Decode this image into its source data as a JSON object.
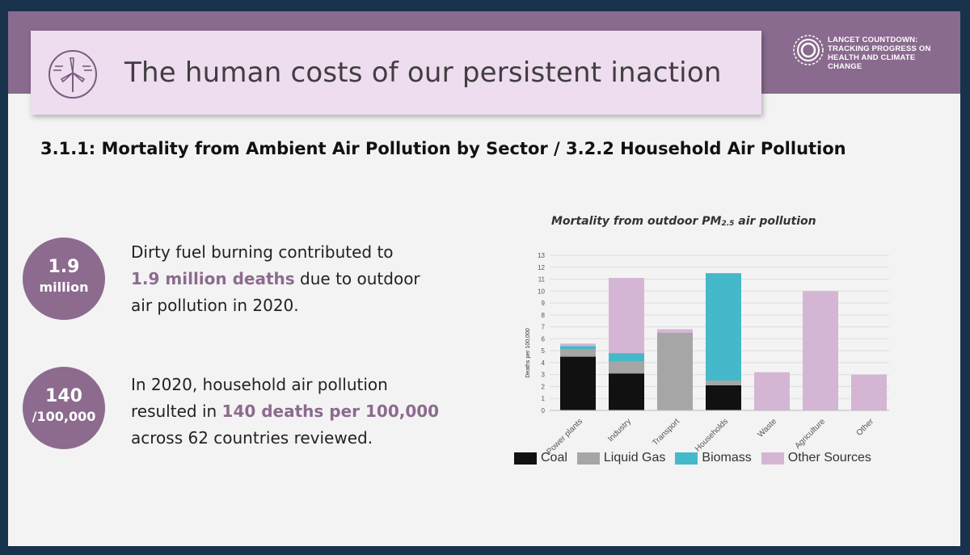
{
  "header": {
    "title": "The human costs of our persistent inaction",
    "icon": "wind-turbine-icon",
    "logo_lines": [
      "LANCET COUNTDOWN:",
      "TRACKING PROGRESS ON",
      "HEALTH AND CLIMATE CHANGE"
    ]
  },
  "subheading": "3.1.1: Mortality from Ambient Air Pollution by Sector / 3.2.2 Household Air Pollution",
  "stats": [
    {
      "circle_big": "1.9",
      "circle_small": "million",
      "line1": "Dirty fuel burning contributed to",
      "highlight": "1.9 million deaths",
      "after_highlight": " due to outdoor",
      "line3": "air pollution in 2020."
    },
    {
      "circle_big": "140",
      "circle_small": "/100,000",
      "line1": "In 2020, household air pollution",
      "before_highlight": "resulted in ",
      "highlight": "140 deaths per 100,000",
      "line3": "across 62 countries reviewed."
    }
  ],
  "colors": {
    "band": "#8a6a8e",
    "title_box": "#eedcef",
    "circle": "#8c6b8f",
    "coal": "#111111",
    "liquid_gas": "#a6a6a6",
    "biomass": "#45b8c9",
    "other_sources": "#d4b6d4"
  },
  "chart_data": {
    "type": "bar",
    "stacked": true,
    "title": "Mortality from outdoor PM",
    "title_sub": "2.5",
    "title_after": " air pollution",
    "ylabel": "Deaths per 100,000",
    "ylim": [
      0,
      13
    ],
    "yticks": [
      0,
      1,
      2,
      3,
      4,
      5,
      6,
      7,
      8,
      9,
      10,
      11,
      12,
      13
    ],
    "grid": true,
    "legend_position": "bottom",
    "categories": [
      "Power plants",
      "Industry",
      "Transport",
      "Households",
      "Waste",
      "Agriculture",
      "Other"
    ],
    "series": [
      {
        "name": "Coal",
        "color": "#111111",
        "values": [
          4.5,
          3.1,
          0,
          2.1,
          0,
          0,
          0
        ]
      },
      {
        "name": "Liquid Gas",
        "color": "#a6a6a6",
        "values": [
          0.6,
          1.0,
          6.5,
          0.4,
          0,
          0,
          0
        ]
      },
      {
        "name": "Biomass",
        "color": "#45b8c9",
        "values": [
          0.3,
          0.7,
          0,
          9.0,
          0,
          0,
          0
        ]
      },
      {
        "name": "Other Sources",
        "color": "#d4b6d4",
        "values": [
          0.2,
          6.3,
          0.3,
          0,
          3.2,
          10.0,
          3.0
        ]
      }
    ]
  }
}
